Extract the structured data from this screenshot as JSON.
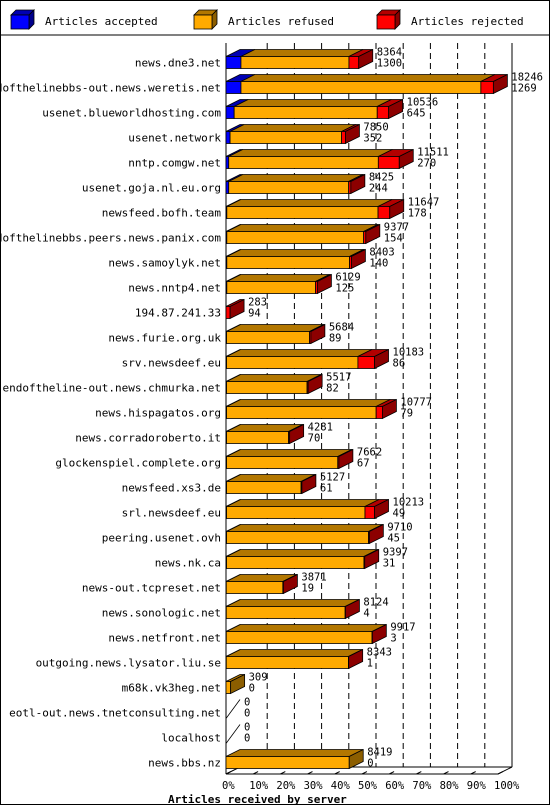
{
  "chart_data": {
    "type": "bar",
    "orientation": "horizontal",
    "stacked": true,
    "xlabel": "Articles received by server",
    "xlim": [
      0,
      100
    ],
    "x_ticks": [
      "0%",
      "10%",
      "20%",
      "30%",
      "40%",
      "50%",
      "60%",
      "70%",
      "80%",
      "90%",
      "100%"
    ],
    "legend": {
      "placement": "top",
      "entries": [
        {
          "name": "Articles accepted",
          "color": "#0000ff"
        },
        {
          "name": "Articles refused",
          "color": "#ffaa00"
        },
        {
          "name": "Articles rejected",
          "color": "#ff0000"
        }
      ]
    },
    "rows": [
      {
        "server": "news.dne3.net",
        "total": "8364",
        "rejected_count": "1300",
        "pct": [
          5.5,
          39.7,
          3.6
        ]
      },
      {
        "server": "endofthelinebbs-out.news.weretis.net",
        "total": "18246",
        "rejected_count": "1269",
        "pct": [
          5.5,
          88.2,
          4.6
        ]
      },
      {
        "server": "usenet.blueworldhosting.com",
        "total": "10536",
        "rejected_count": "645",
        "pct": [
          3.0,
          52.6,
          4.2
        ]
      },
      {
        "server": "usenet.network",
        "total": "7850",
        "rejected_count": "352",
        "pct": [
          1.5,
          41.0,
          1.4
        ]
      },
      {
        "server": "nntp.comgw.net",
        "total": "11511",
        "rejected_count": "270",
        "pct": [
          1.0,
          55.0,
          7.7
        ]
      },
      {
        "server": "usenet.goja.nl.eu.org",
        "total": "8425",
        "rejected_count": "244",
        "pct": [
          1.0,
          44.1,
          0.8
        ]
      },
      {
        "server": "newsfeed.bofh.team",
        "total": "11647",
        "rejected_count": "178",
        "pct": [
          0.3,
          55.6,
          4.3
        ]
      },
      {
        "server": "endofthelinebbs.peers.news.panix.com",
        "total": "9377",
        "rejected_count": "154",
        "pct": [
          0.3,
          50.3,
          0.8
        ]
      },
      {
        "server": "news.samoylyk.net",
        "total": "8403",
        "rejected_count": "140",
        "pct": [
          0.3,
          45.1,
          0.7
        ]
      },
      {
        "server": "news.nntp4.net",
        "total": "6129",
        "rejected_count": "125",
        "pct": [
          0.3,
          32.6,
          0.7
        ]
      },
      {
        "server": "194.87.241.33",
        "total": "283",
        "rejected_count": "94",
        "pct": [
          0,
          0,
          1.5
        ]
      },
      {
        "server": "news.furie.org.uk",
        "total": "5684",
        "rejected_count": "89",
        "pct": [
          0.2,
          30.5,
          0.5
        ]
      },
      {
        "server": "srv.newsdeef.eu",
        "total": "10183",
        "rejected_count": "86",
        "pct": [
          0.2,
          48.3,
          6.1
        ]
      },
      {
        "server": "endoftheline-out.news.chmurka.net",
        "total": "5517",
        "rejected_count": "82",
        "pct": [
          0.2,
          29.6,
          0.4
        ]
      },
      {
        "server": "news.hispagatos.org",
        "total": "10777",
        "rejected_count": "79",
        "pct": [
          0.2,
          55.0,
          2.3
        ]
      },
      {
        "server": "news.corradoroberto.it",
        "total": "4281",
        "rejected_count": "70",
        "pct": [
          0.2,
          22.8,
          0.4
        ]
      },
      {
        "server": "glockenspiel.complete.org",
        "total": "7662",
        "rejected_count": "67",
        "pct": [
          0.2,
          40.9,
          0.4
        ]
      },
      {
        "server": "newsfeed.xs3.de",
        "total": "5127",
        "rejected_count": "61",
        "pct": [
          0.2,
          27.4,
          0.3
        ]
      },
      {
        "server": "srl.newsdeef.eu",
        "total": "10213",
        "rejected_count": "49",
        "pct": [
          0.2,
          50.9,
          3.5
        ]
      },
      {
        "server": "peering.usenet.ovh",
        "total": "9710",
        "rejected_count": "45",
        "pct": [
          0.2,
          52.2,
          0.3
        ]
      },
      {
        "server": "news.nk.ca",
        "total": "9397",
        "rejected_count": "31",
        "pct": [
          0.2,
          50.5,
          0.3
        ]
      },
      {
        "server": "news-out.tcpreset.net",
        "total": "3871",
        "rejected_count": "19",
        "pct": [
          0.1,
          20.8,
          0.2
        ]
      },
      {
        "server": "news.sonologic.net",
        "total": "8124",
        "rejected_count": "4",
        "pct": [
          0.1,
          43.7,
          0.1
        ]
      },
      {
        "server": "news.netfront.net",
        "total": "9917",
        "rejected_count": "3",
        "pct": [
          0.1,
          53.6,
          0.1
        ]
      },
      {
        "server": "outgoing.news.lysator.liu.se",
        "total": "8343",
        "rejected_count": "1",
        "pct": [
          0.1,
          44.9,
          0.1
        ]
      },
      {
        "server": "m68k.vk3heg.net",
        "total": "309",
        "rejected_count": "0",
        "pct": [
          0,
          1.7,
          0
        ]
      },
      {
        "server": "eotl-out.news.tnetconsulting.net",
        "total": "0",
        "rejected_count": "0",
        "pct": [
          0,
          0,
          0
        ]
      },
      {
        "server": "localhost",
        "total": "0",
        "rejected_count": "0",
        "pct": [
          0,
          0,
          0
        ]
      },
      {
        "server": "news.bbs.nz",
        "total": "8419",
        "rejected_count": "0",
        "pct": [
          0,
          45.3,
          0
        ]
      }
    ]
  }
}
